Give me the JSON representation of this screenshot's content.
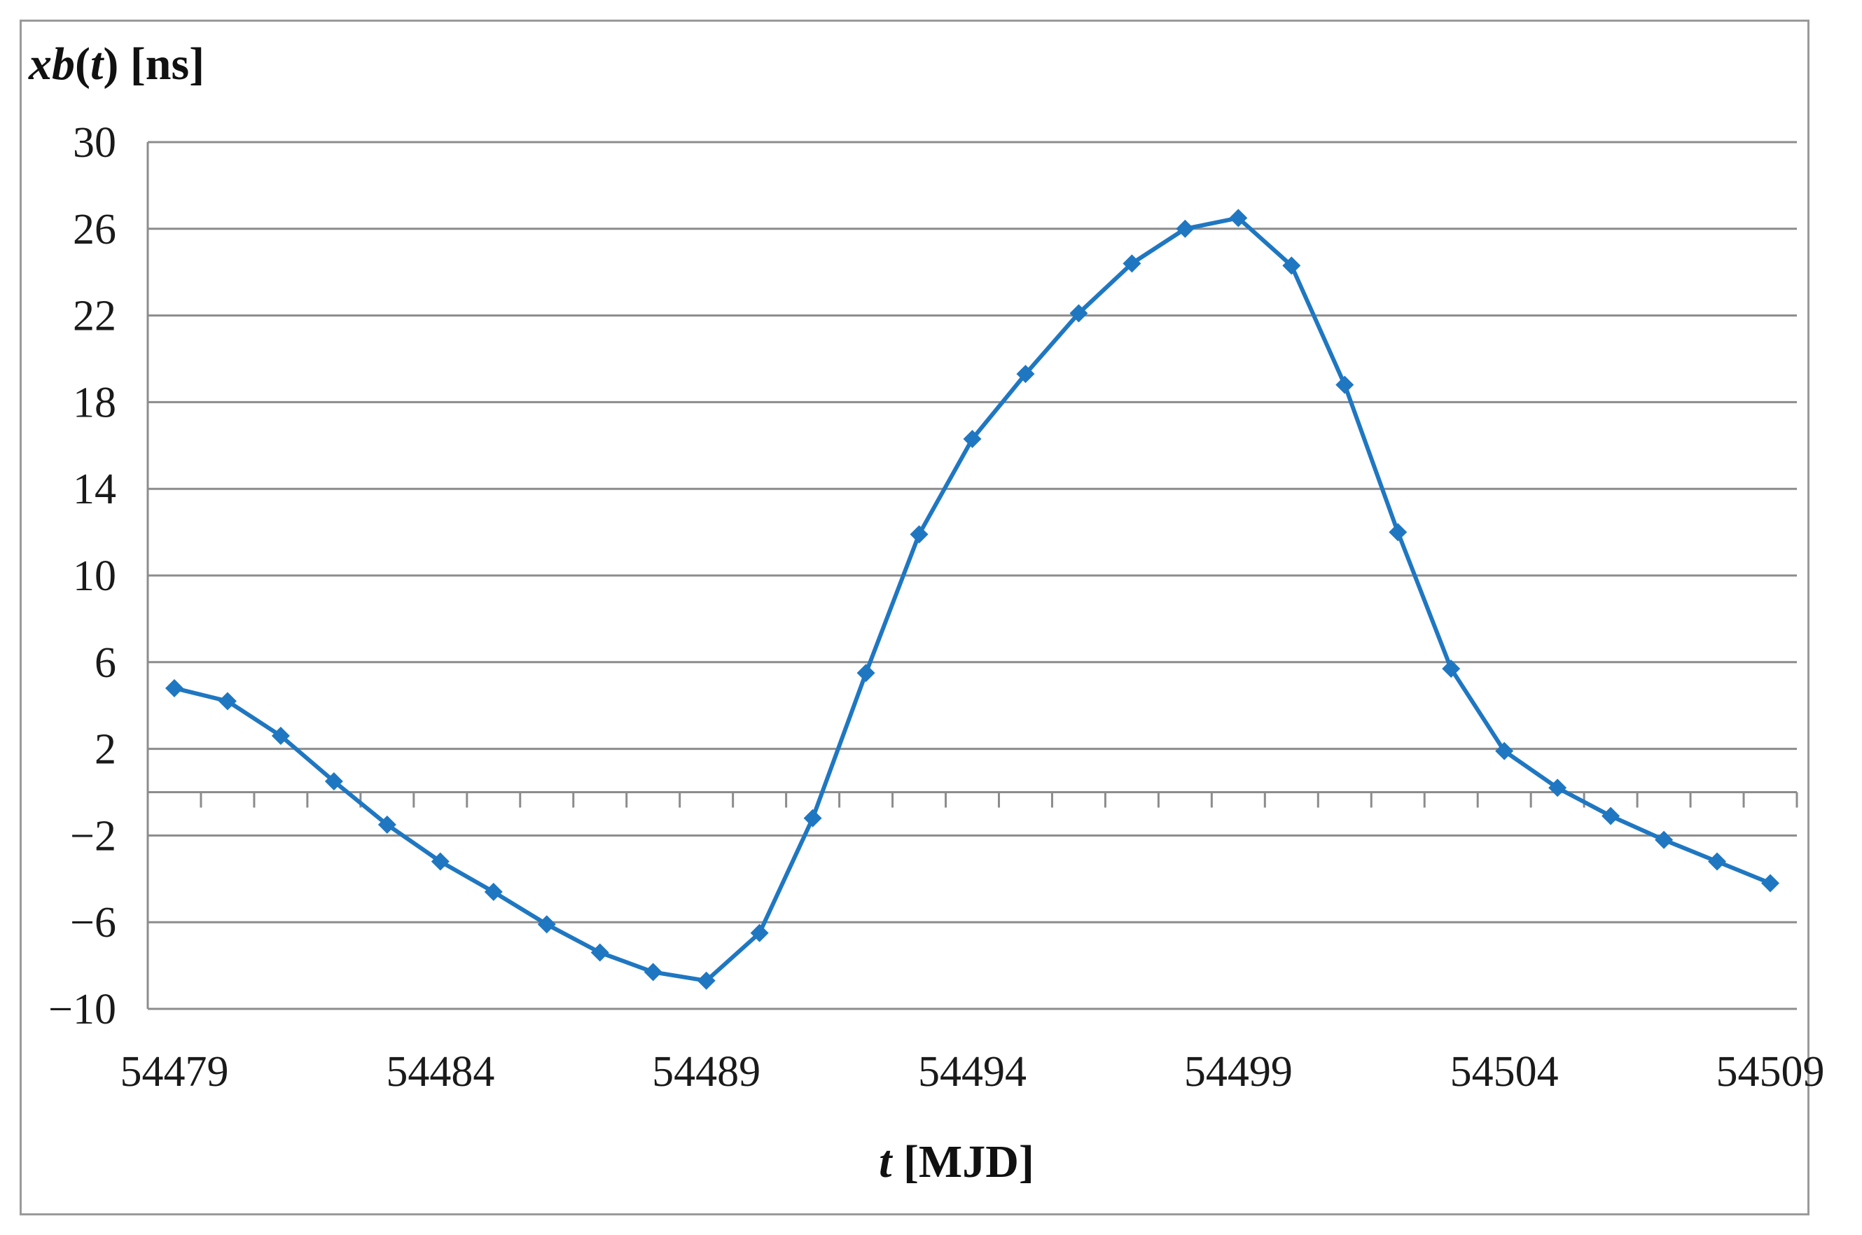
{
  "chart_data": {
    "type": "line",
    "title": "",
    "ylabel": "xb(t) [ns]",
    "ylabel_parts": {
      "var": "xb",
      "open": "(",
      "arg": "t",
      "close": ")",
      "unit": " [ns]"
    },
    "xlabel": "t [MJD]",
    "xlabel_parts": {
      "var": "t",
      "unit": " [MJD]"
    },
    "xlim": [
      54478.5,
      54509.5
    ],
    "ylim": [
      -10,
      30
    ],
    "x_ticks": [
      54479,
      54484,
      54489,
      54494,
      54499,
      54504,
      54509
    ],
    "y_ticks": [
      30,
      26,
      22,
      18,
      14,
      10,
      6,
      2,
      -2,
      -6,
      -10
    ],
    "y_tick_labels": [
      "30",
      "26",
      "22",
      "18",
      "14",
      "10",
      "6",
      "2",
      "−2",
      "−6",
      "−10"
    ],
    "x_tick_labels": [
      "54479",
      "54484",
      "54489",
      "54494",
      "54499",
      "54504",
      "54509"
    ],
    "grid": true,
    "series": [
      {
        "color": "#1f77c1",
        "marker": "diamond",
        "x": [
          54479,
          54480,
          54481,
          54482,
          54483,
          54484,
          54485,
          54486,
          54487,
          54488,
          54489,
          54490,
          54491,
          54492,
          54493,
          54494,
          54495,
          54496,
          54497,
          54498,
          54499,
          54500,
          54501,
          54502,
          54503,
          54504,
          54505,
          54506,
          54507,
          54508,
          54509
        ],
        "values": [
          4.8,
          4.2,
          2.6,
          0.5,
          -1.5,
          -3.2,
          -4.6,
          -6.1,
          -7.4,
          -8.3,
          -8.7,
          -6.5,
          -1.2,
          5.5,
          11.9,
          16.3,
          19.3,
          22.1,
          24.4,
          26.0,
          26.5,
          24.3,
          18.8,
          12.0,
          5.7,
          1.9,
          0.2,
          -1.1,
          -2.2,
          -3.2,
          -4.2
        ]
      }
    ]
  }
}
